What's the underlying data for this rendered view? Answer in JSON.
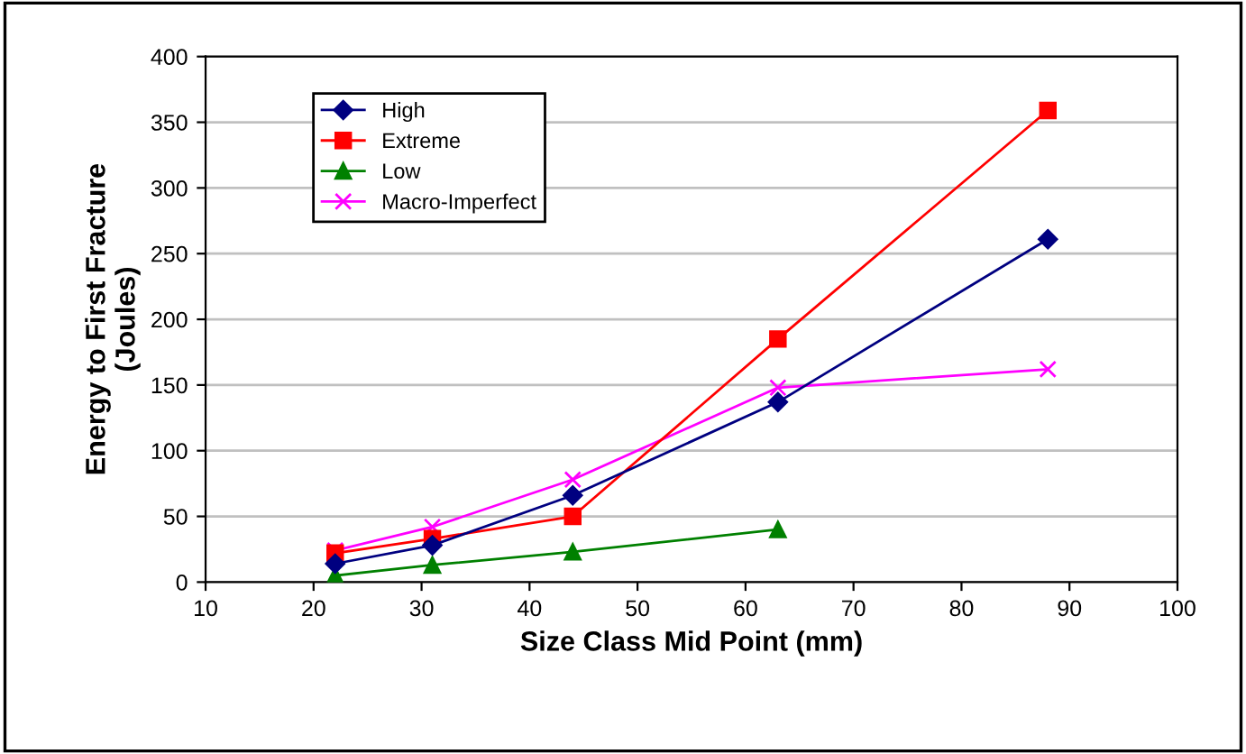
{
  "chart_data": {
    "type": "line",
    "xlabel": "Size Class Mid Point (mm)",
    "ylabel": "Energy to First Fracture\n(Joules)",
    "xlim": [
      10,
      100
    ],
    "xticks": [
      10,
      20,
      30,
      40,
      50,
      60,
      70,
      80,
      90,
      100
    ],
    "ylim": [
      0,
      400
    ],
    "yticks": [
      0,
      50,
      100,
      150,
      200,
      250,
      300,
      350,
      400
    ],
    "grid": "y",
    "legend": "top left",
    "series": [
      {
        "name": "High",
        "color": "#000080",
        "marker": "diamond",
        "x": [
          22,
          31,
          44,
          63,
          88
        ],
        "values": [
          14,
          28,
          66,
          137,
          261
        ]
      },
      {
        "name": "Extreme",
        "color": "#ff0000",
        "marker": "square",
        "x": [
          22,
          31,
          44,
          63,
          88
        ],
        "values": [
          22,
          33,
          50,
          185,
          359
        ]
      },
      {
        "name": "Low",
        "color": "#008000",
        "marker": "triangle",
        "x": [
          22,
          31,
          44,
          63
        ],
        "values": [
          5,
          13,
          23,
          40
        ]
      },
      {
        "name": "Macro-Imperfect",
        "color": "#ff00ff",
        "marker": "cross",
        "x": [
          22,
          31,
          44,
          63,
          88
        ],
        "values": [
          24,
          42,
          78,
          148,
          162
        ]
      }
    ]
  }
}
